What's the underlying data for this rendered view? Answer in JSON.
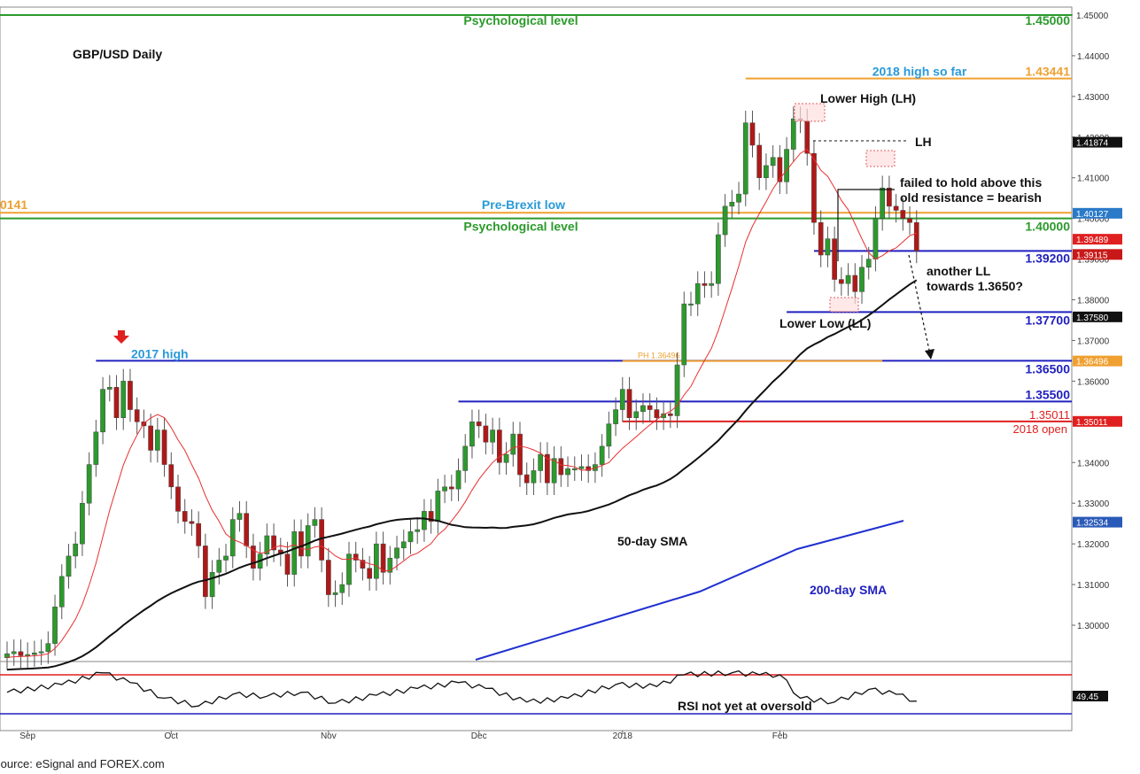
{
  "source": "Source: eSignal and FOREX.com",
  "chart_data": {
    "type": "candlestick",
    "title": "GBP/USD Daily",
    "ylim": [
      1.2925,
      1.451
    ],
    "rsi_ylim": [
      0,
      100
    ],
    "y_ticks": [
      "1.45000",
      "1.44000",
      "1.43000",
      "1.42000",
      "1.41000",
      "1.40000",
      "1.39000",
      "1.38000",
      "1.37000",
      "1.36000",
      "1.35000",
      "1.34000",
      "1.33000",
      "1.32000",
      "1.31000",
      "1.30000"
    ],
    "x_tick_labels": [
      {
        "bar": 3,
        "label": "Sep"
      },
      {
        "bar": 24,
        "label": "Oct"
      },
      {
        "bar": 47,
        "label": "Nov"
      },
      {
        "bar": 69,
        "label": "Dec"
      },
      {
        "bar": 90,
        "label": "2018"
      },
      {
        "bar": 113,
        "label": "Feb"
      }
    ],
    "horizontal_levels": [
      {
        "price": 1.45,
        "label": "Psychological level",
        "value_label": "1.45000",
        "color": "#2c9a2c",
        "x_from_bar": -1,
        "x_to_bar": 152
      },
      {
        "price": 1.43441,
        "label": "2018 high so far",
        "value_label": "1.43441",
        "color": "#f0a030",
        "x_from_bar": 108,
        "x_to_bar": 152
      },
      {
        "price": 1.40141,
        "label": "Pre-Brexit low",
        "value_label": "0141",
        "color": "#f0a030",
        "x_from_bar": -1,
        "x_to_bar": 152
      },
      {
        "price": 1.4,
        "label": "Psychological level",
        "value_label": "1.40000",
        "color": "#2c9a2c",
        "x_from_bar": -1,
        "x_to_bar": 152
      },
      {
        "price": 1.392,
        "label": "",
        "value_label": "1.39200",
        "color": "#2020c0",
        "x_from_bar": 118,
        "x_to_bar": 152
      },
      {
        "price": 1.377,
        "label": "",
        "value_label": "1.37700",
        "color": "#2020c0",
        "x_from_bar": 114,
        "x_to_bar": 152
      },
      {
        "price": 1.365,
        "label": "2017 high",
        "value_label": "1.36500",
        "color": "#2020c0",
        "x_from_bar": 13,
        "x_to_bar": 152
      },
      {
        "price": 1.36496,
        "label": "PH 1.36496",
        "value_label": "",
        "color": "#f0a030",
        "x_from_bar": 90,
        "x_to_bar": 128
      },
      {
        "price": 1.355,
        "label": "",
        "value_label": "1.35500",
        "color": "#2020c0",
        "x_from_bar": 66,
        "x_to_bar": 152
      },
      {
        "price": 1.35011,
        "label": "2018 open",
        "value_label": "1.35011",
        "color": "#e02020",
        "x_from_bar": 90,
        "x_to_bar": 152
      }
    ],
    "price_badges": [
      {
        "price": 1.45,
        "text": "1.45000",
        "bg": "#ffffff",
        "fg": "#333333"
      },
      {
        "price": 1.41874,
        "text": "1.41874",
        "bg": "#111111",
        "fg": "#ffffff"
      },
      {
        "price": 1.40127,
        "text": "1.40127",
        "bg": "#2a7ac8",
        "fg": "#ffffff"
      },
      {
        "price": 1.39489,
        "text": "1.39489",
        "bg": "#e02020",
        "fg": "#ffffff"
      },
      {
        "price": 1.39115,
        "text": "1.39115",
        "bg": "#c81818",
        "fg": "#ffffff"
      },
      {
        "price": 1.3758,
        "text": "1.37580",
        "bg": "#111111",
        "fg": "#ffffff"
      },
      {
        "price": 1.36496,
        "text": "1.36496",
        "bg": "#f0a030",
        "fg": "#ffffff"
      },
      {
        "price": 1.35011,
        "text": "1.35011",
        "bg": "#e02020",
        "fg": "#ffffff"
      },
      {
        "price": 1.32534,
        "text": "1.32534",
        "bg": "#2a5ab8",
        "fg": "#ffffff"
      }
    ],
    "annotations": {
      "lower_high": "Lower High (LH)",
      "lh": "LH",
      "failed_hold": [
        "failed to hold above this",
        "old resistance = bearish"
      ],
      "another_ll": [
        "another LL",
        "towards 1.3650?"
      ],
      "lower_low": "Lower Low (LL)",
      "sma50": "50-day SMA",
      "sma200": "200-day SMA",
      "rsi_note": "RSI not yet at oversold",
      "rsi_value": "49.45",
      "open_value": "1.35011"
    },
    "closes": [
      1.293,
      1.2935,
      1.2925,
      1.2928,
      1.2932,
      1.2935,
      1.2955,
      1.3045,
      1.312,
      1.317,
      1.32,
      1.33,
      1.3395,
      1.3475,
      1.358,
      1.3585,
      1.351,
      1.36,
      1.353,
      1.35,
      1.349,
      1.343,
      1.348,
      1.3395,
      1.334,
      1.328,
      1.3255,
      1.325,
      1.3195,
      1.307,
      1.313,
      1.316,
      1.317,
      1.326,
      1.3275,
      1.3195,
      1.314,
      1.3175,
      1.322,
      1.3185,
      1.3175,
      1.3125,
      1.323,
      1.317,
      1.3245,
      1.326,
      1.316,
      1.3075,
      1.308,
      1.31,
      1.3175,
      1.316,
      1.314,
      1.3115,
      1.32,
      1.313,
      1.3165,
      1.319,
      1.3205,
      1.323,
      1.3235,
      1.328,
      1.3255,
      1.333,
      1.334,
      1.3335,
      1.338,
      1.344,
      1.35,
      1.349,
      1.345,
      1.348,
      1.34,
      1.342,
      1.347,
      1.337,
      1.335,
      1.338,
      1.342,
      1.335,
      1.341,
      1.337,
      1.3385,
      1.3385,
      1.339,
      1.338,
      1.3395,
      1.344,
      1.3495,
      1.353,
      1.358,
      1.351,
      1.3525,
      1.354,
      1.353,
      1.351,
      1.352,
      1.3515,
      1.364,
      1.379,
      1.379,
      1.384,
      1.3835,
      1.384,
      1.396,
      1.403,
      1.404,
      1.406,
      1.4235,
      1.418,
      1.41,
      1.413,
      1.415,
      1.409,
      1.417,
      1.4245,
      1.424,
      1.416,
      1.399,
      1.391,
      1.395,
      1.385,
      1.384,
      1.386,
      1.382,
      1.388,
      1.39,
      1.4,
      1.4075,
      1.403,
      1.402,
      1.4,
      1.399,
      1.392
    ],
    "candles_bar_width_note": "",
    "rsi_levels": [
      70,
      30
    ],
    "rsi_trace": [
      {
        "bar": 0,
        "v": 52
      },
      {
        "bar": 8,
        "v": 60
      },
      {
        "bar": 14,
        "v": 72
      },
      {
        "bar": 18,
        "v": 62
      },
      {
        "bar": 23,
        "v": 46
      },
      {
        "bar": 28,
        "v": 38
      },
      {
        "bar": 33,
        "v": 50
      },
      {
        "bar": 38,
        "v": 48
      },
      {
        "bar": 43,
        "v": 52
      },
      {
        "bar": 48,
        "v": 41
      },
      {
        "bar": 54,
        "v": 49
      },
      {
        "bar": 60,
        "v": 56
      },
      {
        "bar": 66,
        "v": 62
      },
      {
        "bar": 70,
        "v": 56
      },
      {
        "bar": 76,
        "v": 42
      },
      {
        "bar": 82,
        "v": 46
      },
      {
        "bar": 89,
        "v": 60
      },
      {
        "bar": 95,
        "v": 58
      },
      {
        "bar": 99,
        "v": 70
      },
      {
        "bar": 106,
        "v": 72
      },
      {
        "bar": 110,
        "v": 70
      },
      {
        "bar": 113,
        "v": 70
      },
      {
        "bar": 116,
        "v": 46
      },
      {
        "bar": 121,
        "v": 42
      },
      {
        "bar": 126,
        "v": 55
      },
      {
        "bar": 130,
        "v": 50
      },
      {
        "bar": 133,
        "v": 43
      }
    ]
  }
}
